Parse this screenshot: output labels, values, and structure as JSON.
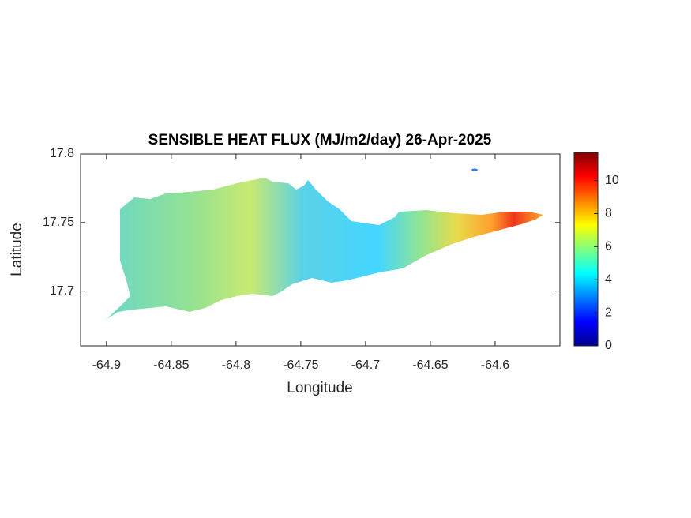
{
  "chart_data": {
    "type": "heatmap",
    "title": "SENSIBLE HEAT FLUX (MJ/m2/day) 26-Apr-2025",
    "xlabel": "Longitude",
    "ylabel": "Latitude",
    "xlim": [
      -64.92,
      -64.55
    ],
    "xticks": [
      -64.9,
      -64.85,
      -64.8,
      -64.75,
      -64.7,
      -64.65,
      -64.6
    ],
    "ylim": [
      17.66,
      17.8
    ],
    "yticks": [
      17.7,
      17.75,
      17.8
    ],
    "colorbar": {
      "clim": [
        0,
        11.7
      ],
      "ticks": [
        0,
        2,
        4,
        6,
        8,
        10
      ],
      "colormap": "jet"
    }
  }
}
